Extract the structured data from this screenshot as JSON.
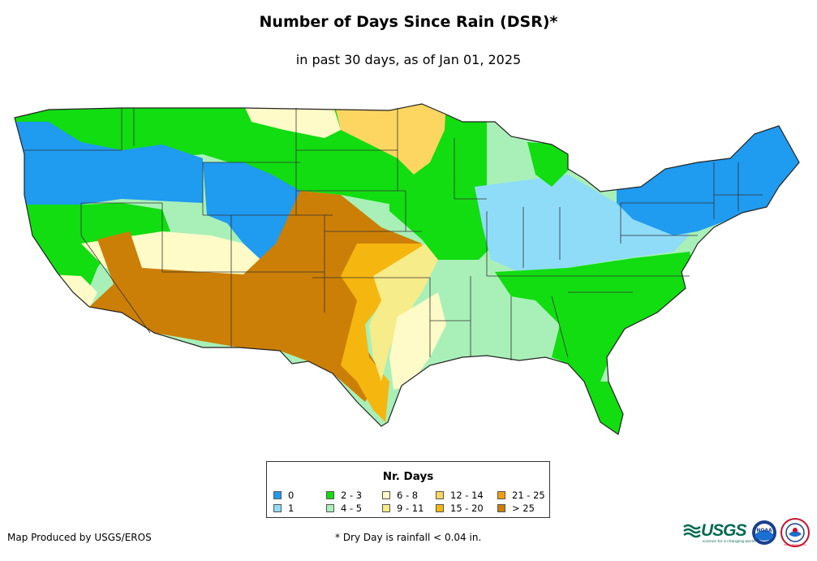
{
  "map": {
    "title": "Number of Days Since Rain (DSR)*",
    "subtitle": "in past 30 days, as of Jan 01, 2025",
    "region": "Contiguous United States"
  },
  "legend": {
    "title": "Nr. Days",
    "items": [
      {
        "label": "0",
        "color": "#1f9bf0"
      },
      {
        "label": "1",
        "color": "#8fdcf8"
      },
      {
        "label": "2 - 3",
        "color": "#11dd11"
      },
      {
        "label": "4 - 5",
        "color": "#a8f0b8"
      },
      {
        "label": "6 - 8",
        "color": "#fffbc8"
      },
      {
        "label": "9 - 11",
        "color": "#f7ec8a"
      },
      {
        "label": "12 - 14",
        "color": "#fcd660"
      },
      {
        "label": "15 - 20",
        "color": "#f5b60f"
      },
      {
        "label": "21 - 25",
        "color": "#f29e0c"
      },
      {
        "label": "> 25",
        "color": "#cc7f06"
      }
    ]
  },
  "footer": {
    "credit": "Map Produced by USGS/EROS",
    "footnote": "* Dry Day is rainfall < 0.04 in."
  },
  "logos": {
    "usgs": "USGS",
    "usgs_tagline": "science for a changing world",
    "noaa": "NOAA",
    "nws": "National Weather Service"
  }
}
